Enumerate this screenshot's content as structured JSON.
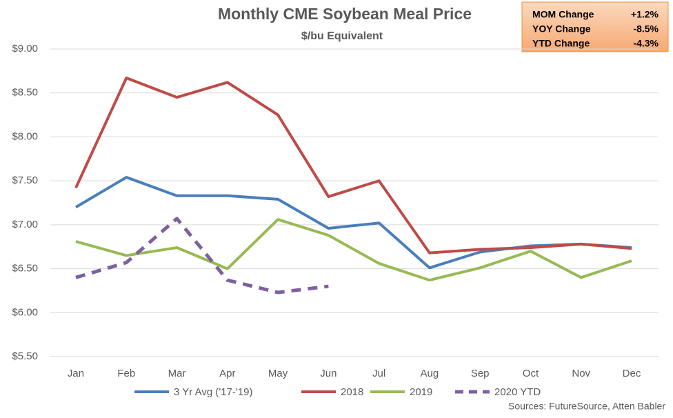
{
  "chart_data": {
    "type": "line",
    "title": "Monthly CME Soybean Meal Price",
    "subtitle": "$/bu Equivalent",
    "categories": [
      "Jan",
      "Feb",
      "Mar",
      "Apr",
      "May",
      "Jun",
      "Jul",
      "Aug",
      "Sep",
      "Oct",
      "Nov",
      "Dec"
    ],
    "series": [
      {
        "name": "3 Yr Avg ('17-'19)",
        "color": "#4a7ebb",
        "values": [
          7.2,
          7.54,
          7.33,
          7.33,
          7.29,
          6.96,
          7.02,
          6.51,
          6.69,
          6.76,
          6.78,
          6.74
        ]
      },
      {
        "name": "2018",
        "color": "#be4b48",
        "values": [
          7.42,
          8.67,
          8.45,
          8.62,
          8.25,
          7.32,
          7.5,
          6.68,
          6.72,
          6.74,
          6.78,
          6.73
        ]
      },
      {
        "name": "2019",
        "color": "#98b954",
        "values": [
          6.81,
          6.65,
          6.74,
          6.5,
          7.06,
          6.88,
          6.56,
          6.37,
          6.51,
          6.7,
          6.4,
          6.59
        ]
      },
      {
        "name": "2020 YTD",
        "color": "#7d60a0",
        "dashed": true,
        "values": [
          6.4,
          6.57,
          7.07,
          6.37,
          6.23,
          6.3,
          null,
          null,
          null,
          null,
          null,
          null
        ]
      }
    ],
    "ylim": [
      5.5,
      9.0
    ],
    "yticks": [
      {
        "value": 5.5,
        "label": "$5.50"
      },
      {
        "value": 6.0,
        "label": "$6.00"
      },
      {
        "value": 6.5,
        "label": "$6.50"
      },
      {
        "value": 7.0,
        "label": "$7.00"
      },
      {
        "value": 7.5,
        "label": "$7.50"
      },
      {
        "value": 8.0,
        "label": "$8.00"
      },
      {
        "value": 8.5,
        "label": "$8.50"
      },
      {
        "value": 9.0,
        "label": "$9.00"
      }
    ],
    "grid": true,
    "legend": "bottom",
    "source": "Sources: FutureSource, Atten Babler",
    "summary_box": [
      [
        "MOM Change",
        "+1.2%"
      ],
      [
        "YOY Change",
        "-8.5%"
      ],
      [
        "YTD Change",
        "-4.3%"
      ]
    ]
  }
}
